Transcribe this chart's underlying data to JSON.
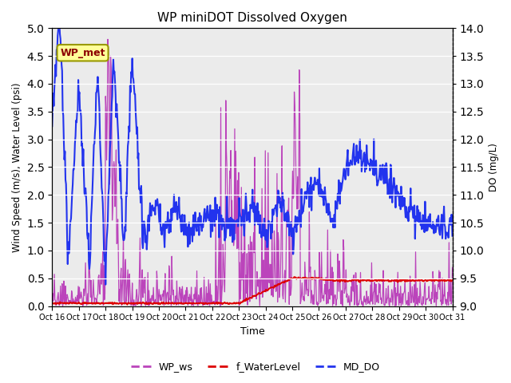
{
  "title": "WP miniDOT Dissolved Oxygen",
  "xlabel": "Time",
  "ylabel_left": "Wind Speed (m/s), Water Level (psi)",
  "ylabel_right": "DO (mg/L)",
  "ylim_left": [
    0.0,
    5.0
  ],
  "ylim_right": [
    9.0,
    14.0
  ],
  "yticks_left": [
    0.0,
    0.5,
    1.0,
    1.5,
    2.0,
    2.5,
    3.0,
    3.5,
    4.0,
    4.5,
    5.0
  ],
  "yticks_right": [
    9.0,
    9.5,
    10.0,
    10.5,
    11.0,
    11.5,
    12.0,
    12.5,
    13.0,
    13.5,
    14.0
  ],
  "xtick_labels": [
    "Oct 16",
    "Oct 17",
    "Oct 18",
    "Oct 19",
    "Oct 20",
    "Oct 21",
    "Oct 22",
    "Oct 23",
    "Oct 24",
    "Oct 25",
    "Oct 26",
    "Oct 27",
    "Oct 28",
    "Oct 29",
    "Oct 30",
    "Oct 31"
  ],
  "color_ws": "#BB44BB",
  "color_wl": "#DD0000",
  "color_do": "#2233EE",
  "legend_label_ws": "WP_ws",
  "legend_label_wl": "f_WaterLevel",
  "legend_label_do": "MD_DO",
  "annotation_text": "WP_met",
  "annotation_bg": "#FFFF99",
  "annotation_border": "#999900",
  "bg_color": "#EBEBEB",
  "linewidth_ws": 0.9,
  "linewidth_wl": 1.4,
  "linewidth_do": 1.5,
  "n_points": 720
}
